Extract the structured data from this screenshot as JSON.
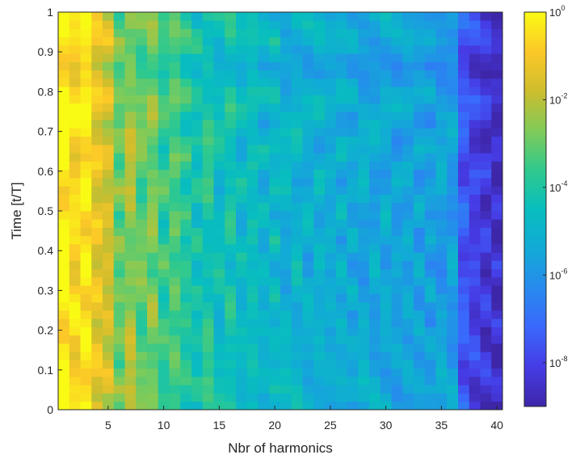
{
  "chart_data": {
    "type": "heatmap",
    "title": "",
    "xlabel": "Nbr of harmonics",
    "ylabel": "Time [t/T]",
    "xlim": [
      1,
      40
    ],
    "ylim": [
      0,
      1
    ],
    "xticks": [
      "5",
      "10",
      "15",
      "20",
      "25",
      "30",
      "35",
      "40"
    ],
    "yticks": [
      "0",
      "0.1",
      "0.2",
      "0.3",
      "0.4",
      "0.5",
      "0.6",
      "0.7",
      "0.8",
      "0.9",
      "1"
    ],
    "x_harmonics": [
      1,
      2,
      3,
      4,
      5,
      6,
      7,
      8,
      9,
      10,
      11,
      12,
      13,
      14,
      15,
      16,
      17,
      18,
      19,
      20,
      21,
      22,
      23,
      24,
      25,
      26,
      27,
      28,
      29,
      30,
      31,
      32,
      33,
      34,
      35,
      36,
      37,
      38,
      39,
      40
    ],
    "time_steps": 48,
    "color_scale": "log",
    "colormap": "parula",
    "colorbar": {
      "ticks": [
        {
          "base": "10",
          "exp": "0"
        },
        {
          "base": "10",
          "exp": "-2"
        },
        {
          "base": "10",
          "exp": "-4"
        },
        {
          "base": "10",
          "exp": "-6"
        },
        {
          "base": "10",
          "exp": "-8"
        }
      ],
      "clim_log10": [
        -9,
        0
      ]
    },
    "approx_log10_level_by_harmonic": [
      -0.15,
      -0.7,
      -0.3,
      -1.3,
      -1.7,
      -3.0,
      -2.4,
      -3.1,
      -2.8,
      -3.7,
      -3.3,
      -3.9,
      -4.3,
      -4.0,
      -4.6,
      -4.2,
      -4.8,
      -4.5,
      -5.0,
      -4.8,
      -5.1,
      -5.0,
      -5.2,
      -5.1,
      -5.3,
      -5.2,
      -5.4,
      -5.4,
      -5.5,
      -5.4,
      -5.6,
      -5.5,
      -5.6,
      -5.7,
      -5.7,
      -5.8,
      -7.5,
      -8.0,
      -8.3,
      -8.6
    ]
  }
}
